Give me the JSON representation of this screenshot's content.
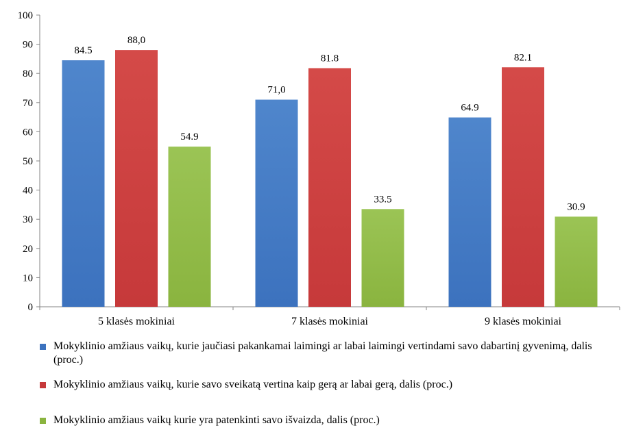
{
  "chart_data": {
    "type": "bar",
    "title": "",
    "xlabel": "",
    "ylabel": "",
    "ylim": [
      0,
      100
    ],
    "yticks": [
      "0",
      "10",
      "20",
      "30",
      "40",
      "50",
      "60",
      "70",
      "80",
      "90",
      "100"
    ],
    "grid": false,
    "categories": [
      "5 klasės mokiniai",
      "7 klasės mokiniai",
      "9 klasės mokiniai"
    ],
    "series": [
      {
        "name": "Mokyklinio amžiaus vaikų, kurie jaučiasi pakankamai laimingi ar labai laimingi vertindami savo dabartinį gyvenimą, dalis (proc.)",
        "values": [
          84.5,
          71.0,
          64.9
        ],
        "labels": [
          "84.5",
          "71,0",
          "64.9"
        ],
        "color": "#3c72be",
        "color_light": "#4f86cc"
      },
      {
        "name": "Mokyklinio amžiaus vaikų, kurie savo sveikatą vertina kaip gerą ar labai gerą, dalis (proc.)",
        "values": [
          88.0,
          81.8,
          82.1
        ],
        "labels": [
          "88,0",
          "81.8",
          "82.1"
        ],
        "color": "#c6393a",
        "color_light": "#d44a48"
      },
      {
        "name": "Mokyklinio amžiaus vaikų kurie yra patenkinti savo išvaizda, dalis (proc.)",
        "values": [
          54.9,
          33.5,
          30.9
        ],
        "labels": [
          "54.9",
          "33.5",
          "30.9"
        ],
        "color": "#8ab43f",
        "color_light": "#9bc455"
      }
    ],
    "legend_position": "bottom"
  }
}
